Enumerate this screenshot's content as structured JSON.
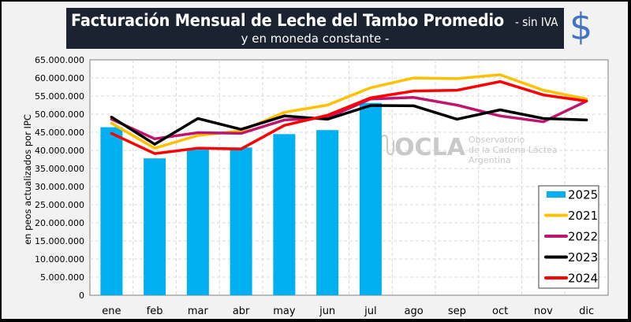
{
  "header": {
    "title": "Facturación Mensual de Leche del Tambo Promedio",
    "suffix": "- sin IVA",
    "subtitle": "y en moneda constante -",
    "currency_icon": "dollar-sign"
  },
  "watermark": {
    "logo": "OCLA",
    "line1": "Observatorio",
    "line2": "de la Cadena Láctea",
    "line3": "Argentina"
  },
  "chart_data": {
    "type": "bar+line",
    "title": "Facturación Mensual de Leche del Tambo Promedio - sin IVA y en moneda constante -",
    "xlabel": "",
    "ylabel": "en peos actualizados por IPC",
    "ylim": [
      0,
      65000000
    ],
    "yticks": [
      0,
      5000000,
      10000000,
      15000000,
      20000000,
      25000000,
      30000000,
      35000000,
      40000000,
      45000000,
      50000000,
      55000000,
      60000000,
      65000000
    ],
    "ytick_labels": [
      "0",
      "5.000.000",
      "10.000.000",
      "15.000.000",
      "20.000.000",
      "25.000.000",
      "30.000.000",
      "35.000.000",
      "40.000.000",
      "45.000.000",
      "50.000.000",
      "55.000.000",
      "60.000.000",
      "65.000.000"
    ],
    "grid": true,
    "legend_position": "bottom-right",
    "categories": [
      "ene",
      "feb",
      "mar",
      "abr",
      "may",
      "jun",
      "jul",
      "ago",
      "sep",
      "oct",
      "nov",
      "dic"
    ],
    "series": [
      {
        "name": "2025",
        "kind": "bar",
        "color": "#00b0f0",
        "values": [
          46400000,
          37800000,
          40200000,
          40800000,
          44500000,
          45600000,
          53100000,
          null,
          null,
          null,
          null,
          null
        ]
      },
      {
        "name": "2021",
        "kind": "line",
        "color": "#ffc000",
        "values": [
          47500000,
          40600000,
          44100000,
          45400000,
          50500000,
          52500000,
          57300000,
          60000000,
          59800000,
          60900000,
          56600000,
          54200000
        ]
      },
      {
        "name": "2022",
        "kind": "line",
        "color": "#c0156e",
        "values": [
          48600000,
          43200000,
          44900000,
          44700000,
          48400000,
          49000000,
          54200000,
          54600000,
          52500000,
          49500000,
          47900000,
          53600000
        ]
      },
      {
        "name": "2023",
        "kind": "line",
        "color": "#000000",
        "values": [
          49200000,
          41700000,
          48800000,
          45800000,
          49500000,
          48600000,
          52400000,
          52300000,
          48600000,
          51200000,
          48800000,
          48400000
        ]
      },
      {
        "name": "2024",
        "kind": "line",
        "color": "#ff0000",
        "values": [
          44700000,
          39100000,
          40600000,
          40400000,
          46900000,
          49700000,
          54500000,
          56400000,
          56600000,
          59000000,
          55300000,
          53600000
        ]
      }
    ]
  }
}
